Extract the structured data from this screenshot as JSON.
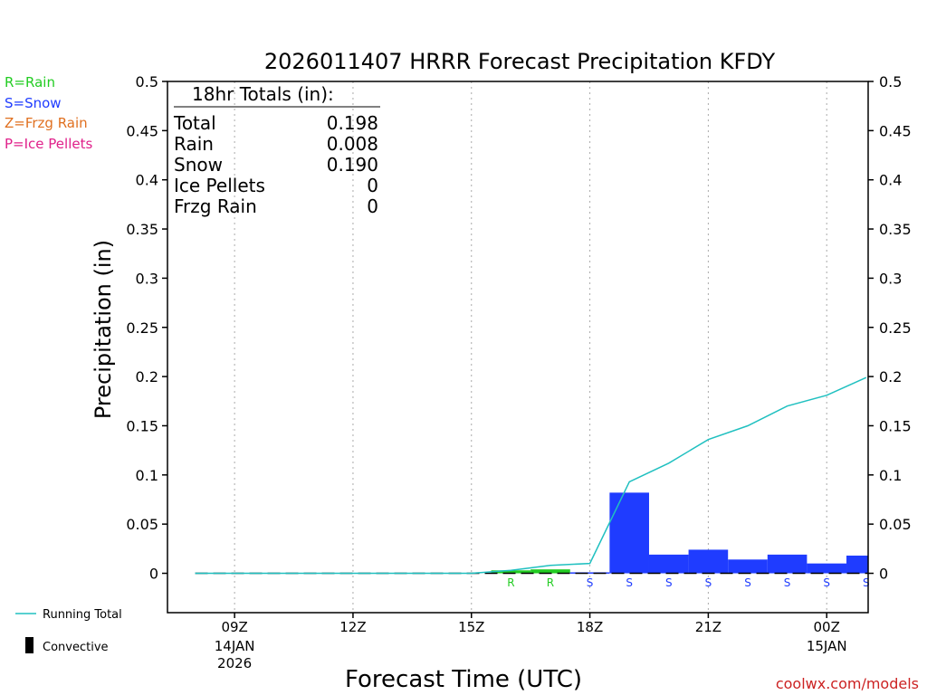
{
  "legend": {
    "rain": "R=Rain",
    "snow": "S=Snow",
    "frzg_rain": "Z=Frzg Rain",
    "ice_pellets": "P=Ice Pellets",
    "running_total": "Running Total",
    "convective": "Convective"
  },
  "totals": {
    "heading": "18hr Totals (in):",
    "rows": [
      {
        "label": "Total",
        "value": "0.198"
      },
      {
        "label": "Rain",
        "value": "0.008"
      },
      {
        "label": "Snow",
        "value": "0.190"
      },
      {
        "label": "Ice Pellets",
        "value": "0"
      },
      {
        "label": "Frzg Rain",
        "value": "0"
      }
    ]
  },
  "credit": "coolwx.com/models",
  "colors": {
    "rain": "#22cc22",
    "snow": "#1f3cff",
    "frzg_rain": "#e07020",
    "ice_pellets": "#e0208a",
    "running_total": "#20c0c0",
    "convective": "#000000",
    "grid": "#aaaaaa"
  },
  "chart_data": {
    "type": "bar",
    "title": "2026011407 HRRR Forecast Precipitation KFDY",
    "xlabel": "Forecast Time (UTC)",
    "ylabel": "Precipitation (in)",
    "ylim": [
      -0.04,
      0.5
    ],
    "yticks": [
      0,
      0.05,
      0.1,
      0.15,
      0.2,
      0.25,
      0.3,
      0.35,
      0.4,
      0.45,
      0.5
    ],
    "ytick_labels": [
      "0",
      "0.05",
      "0.1",
      "0.15",
      "0.2",
      "0.25",
      "0.3",
      "0.35",
      "0.4",
      "0.45",
      "0.5"
    ],
    "xlim_hours": [
      7.3,
      25.05
    ],
    "xticks": [
      {
        "hour": 9,
        "label": "09Z",
        "sub": [
          "14JAN",
          "2026"
        ]
      },
      {
        "hour": 12,
        "label": "12Z",
        "sub": []
      },
      {
        "hour": 15,
        "label": "15Z",
        "sub": []
      },
      {
        "hour": 18,
        "label": "18Z",
        "sub": []
      },
      {
        "hour": 21,
        "label": "21Z",
        "sub": []
      },
      {
        "hour": 24,
        "label": "00Z",
        "sub": [
          "15JAN"
        ]
      }
    ],
    "grid": "vertical-dotted",
    "bars": [
      {
        "start": 15.5,
        "end": 16.5,
        "value": 0.003,
        "ptype": "rain"
      },
      {
        "start": 16.5,
        "end": 17.5,
        "value": 0.004,
        "ptype": "rain"
      },
      {
        "start": 17.5,
        "end": 18.5,
        "value": 0.001,
        "ptype": "snow"
      },
      {
        "start": 18.5,
        "end": 19.5,
        "value": 0.082,
        "ptype": "snow"
      },
      {
        "start": 19.5,
        "end": 20.5,
        "value": 0.019,
        "ptype": "snow"
      },
      {
        "start": 20.5,
        "end": 21.5,
        "value": 0.024,
        "ptype": "snow"
      },
      {
        "start": 21.5,
        "end": 22.5,
        "value": 0.014,
        "ptype": "snow"
      },
      {
        "start": 22.5,
        "end": 23.5,
        "value": 0.019,
        "ptype": "snow"
      },
      {
        "start": 23.5,
        "end": 24.5,
        "value": 0.01,
        "ptype": "snow"
      },
      {
        "start": 24.5,
        "end": 25.05,
        "value": 0.018,
        "ptype": "snow"
      }
    ],
    "ptype_markers": [
      {
        "hour": 16,
        "label": "R",
        "ptype": "rain"
      },
      {
        "hour": 17,
        "label": "R",
        "ptype": "rain"
      },
      {
        "hour": 18,
        "label": "S",
        "ptype": "snow"
      },
      {
        "hour": 19,
        "label": "S",
        "ptype": "snow"
      },
      {
        "hour": 20,
        "label": "S",
        "ptype": "snow"
      },
      {
        "hour": 21,
        "label": "S",
        "ptype": "snow"
      },
      {
        "hour": 22,
        "label": "S",
        "ptype": "snow"
      },
      {
        "hour": 23,
        "label": "S",
        "ptype": "snow"
      },
      {
        "hour": 24,
        "label": "S",
        "ptype": "snow"
      },
      {
        "hour": 25,
        "label": "S",
        "ptype": "snow"
      }
    ],
    "running_total": {
      "name": "Running Total",
      "x": [
        8,
        9,
        10,
        11,
        12,
        13,
        14,
        15,
        16,
        17,
        18,
        19,
        20,
        21,
        22,
        23,
        24,
        25
      ],
      "values": [
        0,
        0,
        0,
        0,
        0,
        0,
        0,
        0,
        0.003,
        0.008,
        0.01,
        0.093,
        0.112,
        0.136,
        0.15,
        0.17,
        0.181,
        0.199
      ]
    }
  }
}
